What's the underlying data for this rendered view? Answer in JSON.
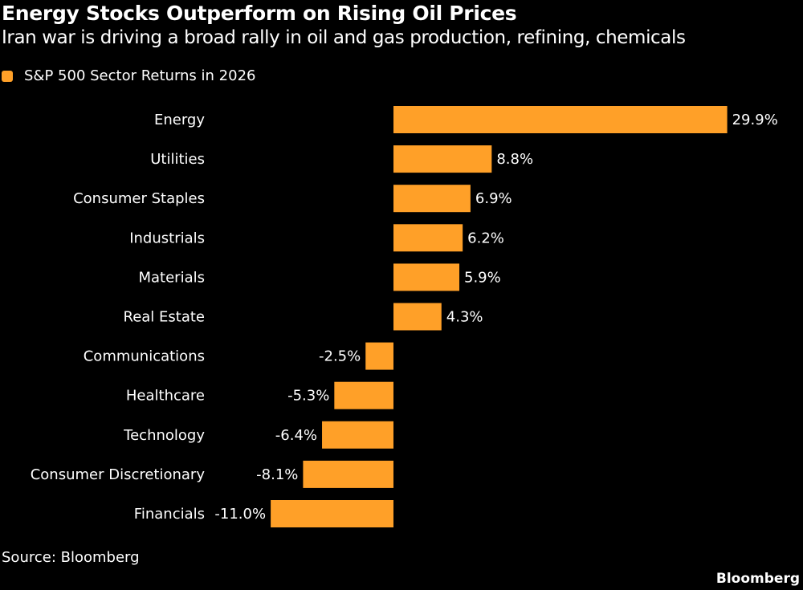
{
  "header": {
    "title": "Energy Stocks Outperform on Rising Oil Prices",
    "subtitle": "Iran war is driving a broad rally in oil and gas production, refining, chemicals"
  },
  "legend": {
    "label": "S&P 500 Sector Returns in 2026",
    "color": "#FFA028"
  },
  "footer": {
    "source": "Source: Bloomberg",
    "brand": "Bloomberg"
  },
  "chart_data": {
    "type": "bar",
    "orientation": "horizontal",
    "title": "Energy Stocks Outperform on Rising Oil Prices",
    "subtitle": "Iran war is driving a broad rally in oil and gas production, refining, chemicals",
    "xlabel": "",
    "ylabel": "",
    "unit": "%",
    "categories": [
      "Energy",
      "Utilities",
      "Consumer Staples",
      "Industrials",
      "Materials",
      "Real Estate",
      "Communications",
      "Healthcare",
      "Technology",
      "Consumer Discretionary",
      "Financials"
    ],
    "series": [
      {
        "name": "S&P 500 Sector Returns in 2026",
        "color": "#FFA028",
        "values": [
          29.9,
          8.8,
          6.9,
          6.2,
          5.9,
          4.3,
          -2.5,
          -5.3,
          -6.4,
          -8.1,
          -11.0
        ]
      }
    ],
    "data_labels": [
      "29.9%",
      "8.8%",
      "6.9%",
      "6.2%",
      "5.9%",
      "4.3%",
      "-2.5%",
      "-5.3%",
      "-6.4%",
      "-8.1%",
      "-11.0%"
    ],
    "xlim": [
      -11.0,
      29.9
    ],
    "grid": false,
    "legend_position": "top-left",
    "source": "Source: Bloomberg"
  }
}
